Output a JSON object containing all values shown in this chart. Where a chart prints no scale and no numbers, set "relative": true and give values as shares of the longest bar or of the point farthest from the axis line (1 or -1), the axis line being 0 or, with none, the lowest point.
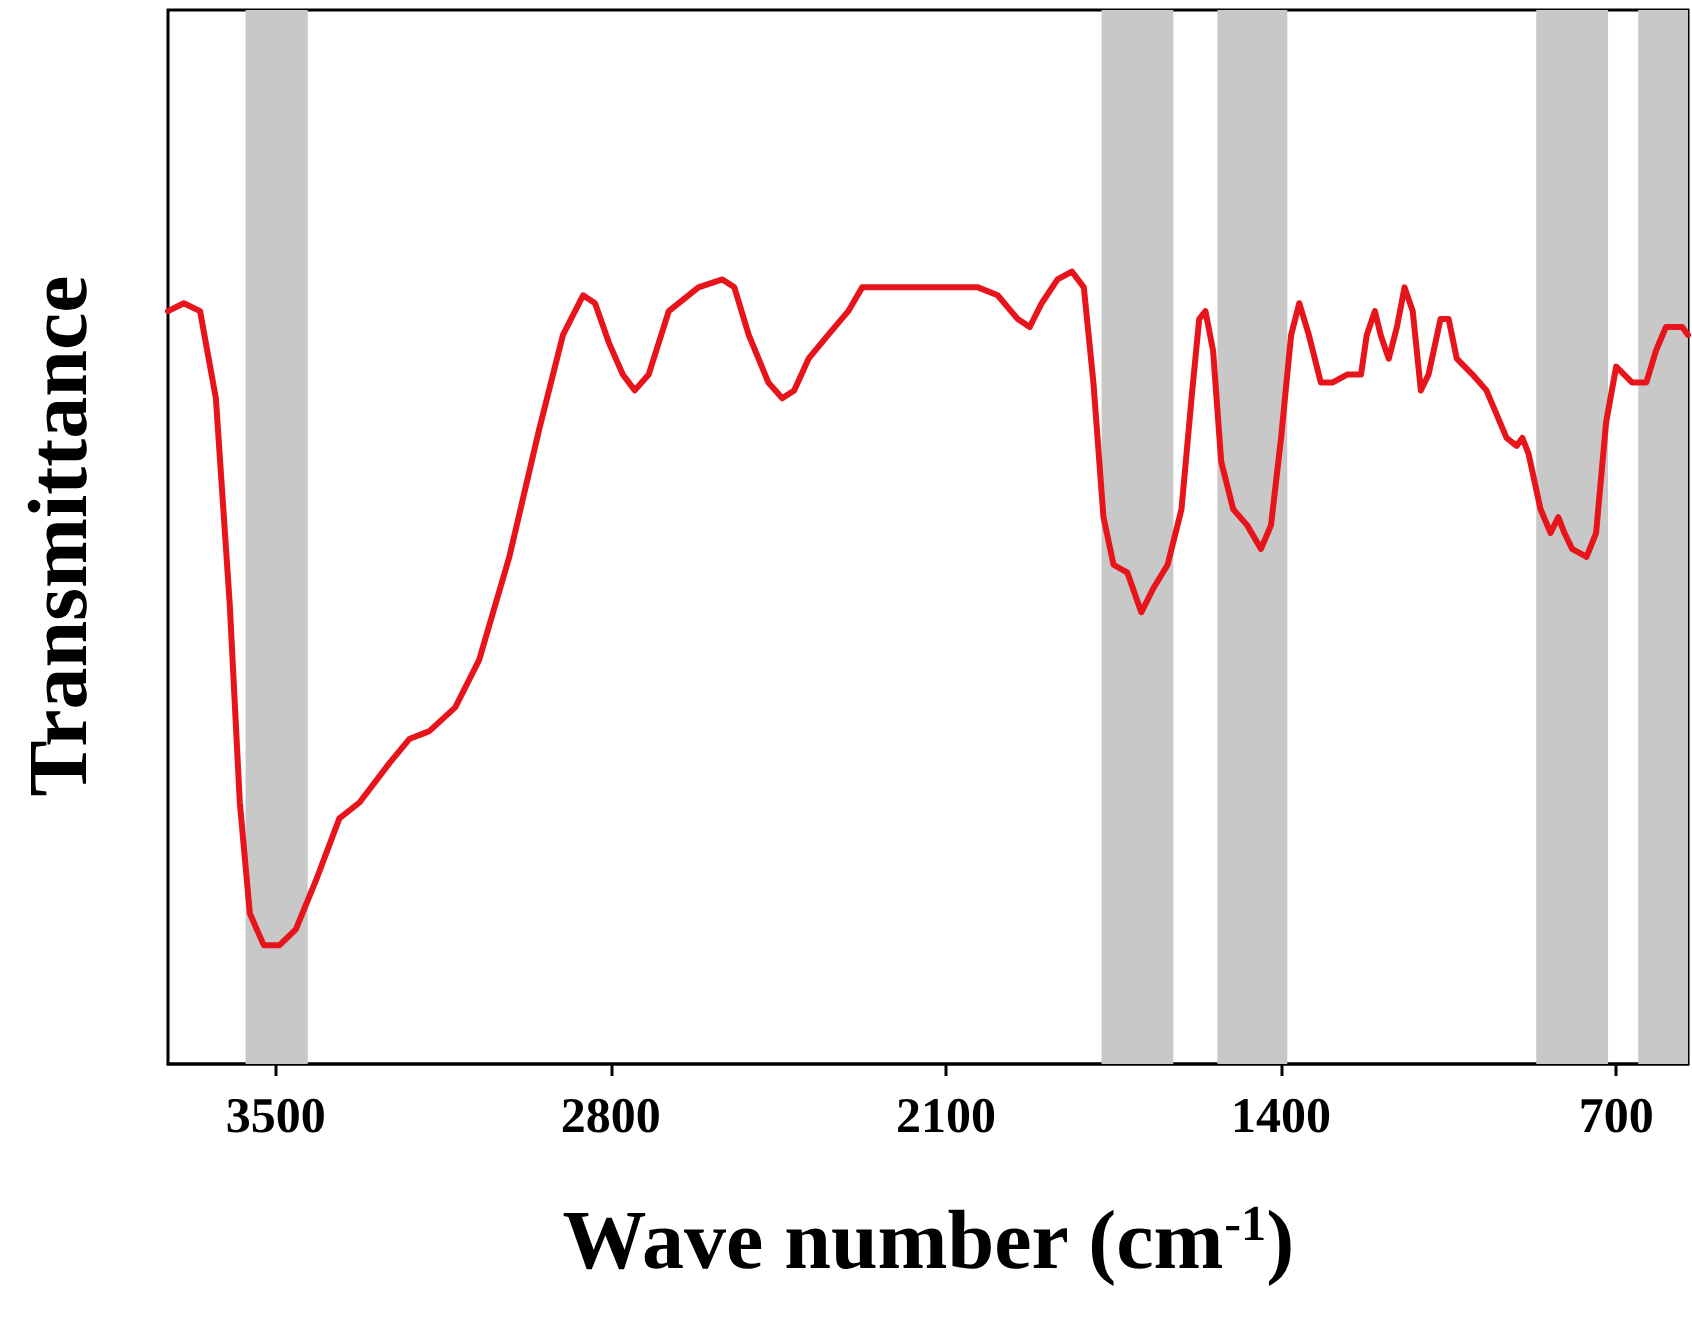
{
  "chart_data": {
    "type": "line",
    "relative": true,
    "xlabel": "Wave number (cm$^{-1}$)",
    "ylabel": "Transmittance",
    "xlim": [
      3725,
      550
    ],
    "xticks": [
      3500,
      2800,
      2100,
      1400,
      700
    ],
    "bands": [
      {
        "axis": "x",
        "from": 3563,
        "to": 3433,
        "color": "#c8c8c8"
      },
      {
        "axis": "x",
        "from": 1775,
        "to": 1625,
        "color": "#c8c8c8"
      },
      {
        "axis": "x",
        "from": 1533,
        "to": 1387,
        "color": "#c8c8c8"
      },
      {
        "axis": "x",
        "from": 867,
        "to": 717,
        "color": "#c8c8c8"
      },
      {
        "axis": "x",
        "from": 654,
        "to": 550,
        "color": "#c8c8c8"
      }
    ],
    "series": [
      {
        "color": "#e8141c",
        "x": [
          3725,
          3692,
          3658,
          3625,
          3596,
          3575,
          3554,
          3525,
          3492,
          3458,
          3417,
          3367,
          3325,
          3262,
          3221,
          3179,
          3125,
          3075,
          3012,
          2950,
          2900,
          2858,
          2833,
          2804,
          2775,
          2750,
          2721,
          2679,
          2617,
          2567,
          2542,
          2512,
          2471,
          2442,
          2417,
          2387,
          2346,
          2304,
          2275,
          2221,
          2117,
          2033,
          1992,
          1950,
          1925,
          1900,
          1867,
          1837,
          1812,
          1792,
          1771,
          1750,
          1721,
          1692,
          1667,
          1637,
          1608,
          1587,
          1571,
          1558,
          1542,
          1525,
          1500,
          1471,
          1442,
          1421,
          1400,
          1379,
          1362,
          1342,
          1317,
          1292,
          1262,
          1233,
          1221,
          1204,
          1192,
          1175,
          1158,
          1142,
          1125,
          1108,
          1092,
          1067,
          1050,
          1033,
          1000,
          971,
          950,
          929,
          908,
          896,
          883,
          858,
          837,
          821,
          808,
          792,
          762,
          742,
          721,
          700,
          667,
          637,
          617,
          596,
          562,
          550
        ],
        "values": [
          0.95,
          0.96,
          0.95,
          0.84,
          0.58,
          0.33,
          0.19,
          0.15,
          0.15,
          0.17,
          0.23,
          0.31,
          0.33,
          0.38,
          0.41,
          0.42,
          0.45,
          0.51,
          0.64,
          0.8,
          0.92,
          0.97,
          0.96,
          0.91,
          0.87,
          0.85,
          0.87,
          0.95,
          0.98,
          0.99,
          0.98,
          0.92,
          0.86,
          0.84,
          0.85,
          0.89,
          0.92,
          0.95,
          0.98,
          0.98,
          0.98,
          0.98,
          0.97,
          0.94,
          0.93,
          0.96,
          0.99,
          1.0,
          0.98,
          0.86,
          0.69,
          0.63,
          0.62,
          0.57,
          0.6,
          0.63,
          0.7,
          0.84,
          0.94,
          0.95,
          0.9,
          0.76,
          0.7,
          0.68,
          0.65,
          0.68,
          0.79,
          0.92,
          0.96,
          0.92,
          0.86,
          0.86,
          0.87,
          0.87,
          0.92,
          0.95,
          0.92,
          0.89,
          0.93,
          0.98,
          0.95,
          0.85,
          0.87,
          0.94,
          0.94,
          0.89,
          0.87,
          0.85,
          0.82,
          0.79,
          0.78,
          0.79,
          0.77,
          0.7,
          0.67,
          0.69,
          0.67,
          0.65,
          0.64,
          0.67,
          0.81,
          0.88,
          0.86,
          0.86,
          0.9,
          0.93,
          0.93,
          0.92
        ]
      }
    ]
  }
}
